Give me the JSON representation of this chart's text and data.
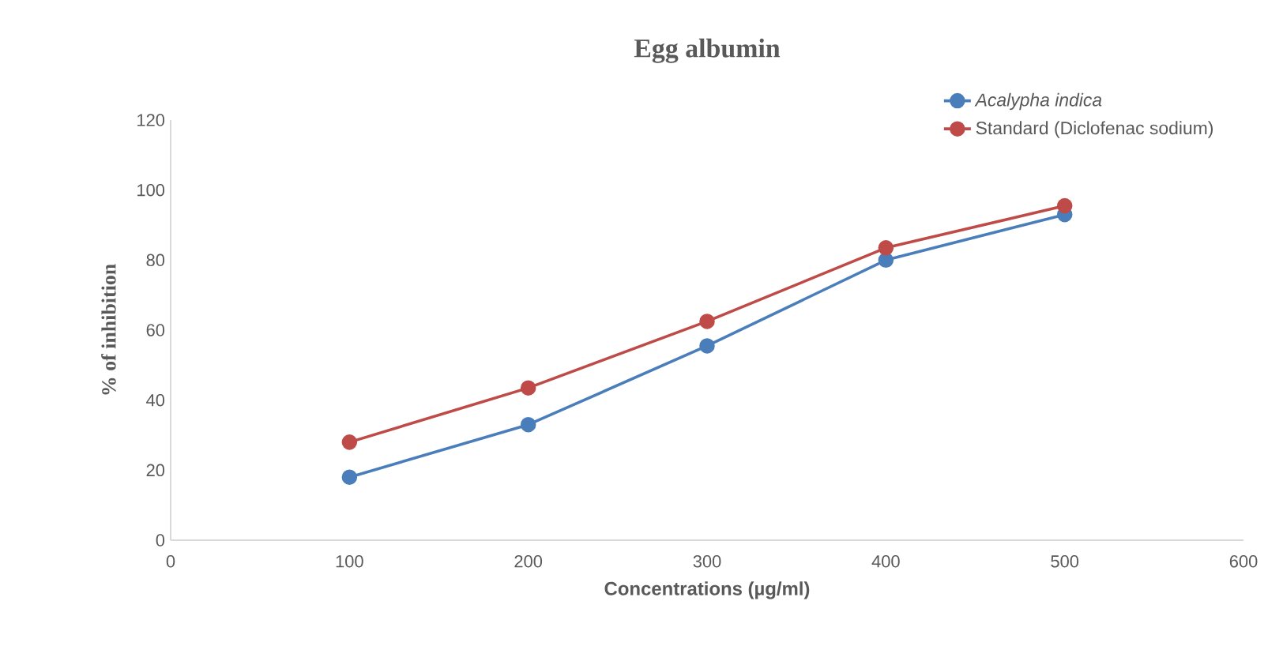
{
  "chart_data": {
    "type": "line",
    "title": "Egg albumin",
    "xlabel": "Concentrations (µg/ml)",
    "ylabel": "% of inhibition",
    "x": [
      100,
      200,
      300,
      400,
      500
    ],
    "series": [
      {
        "name": "Acalypha indica",
        "color": "#4a7ebb",
        "values": [
          18,
          33,
          55.5,
          80,
          93
        ]
      },
      {
        "name": "Standard (Diclofenac sodium)",
        "color": "#be4b48",
        "values": [
          28,
          43.5,
          62.5,
          83.5,
          95.5
        ]
      }
    ],
    "xlim": [
      0,
      600
    ],
    "xticks": [
      0,
      100,
      200,
      300,
      400,
      500,
      600
    ],
    "ylim": [
      0,
      120
    ],
    "yticks": [
      0,
      20,
      40,
      60,
      80,
      100,
      120
    ],
    "grid": false,
    "legend": "top right",
    "marker": "circle",
    "line_style": "solid"
  }
}
